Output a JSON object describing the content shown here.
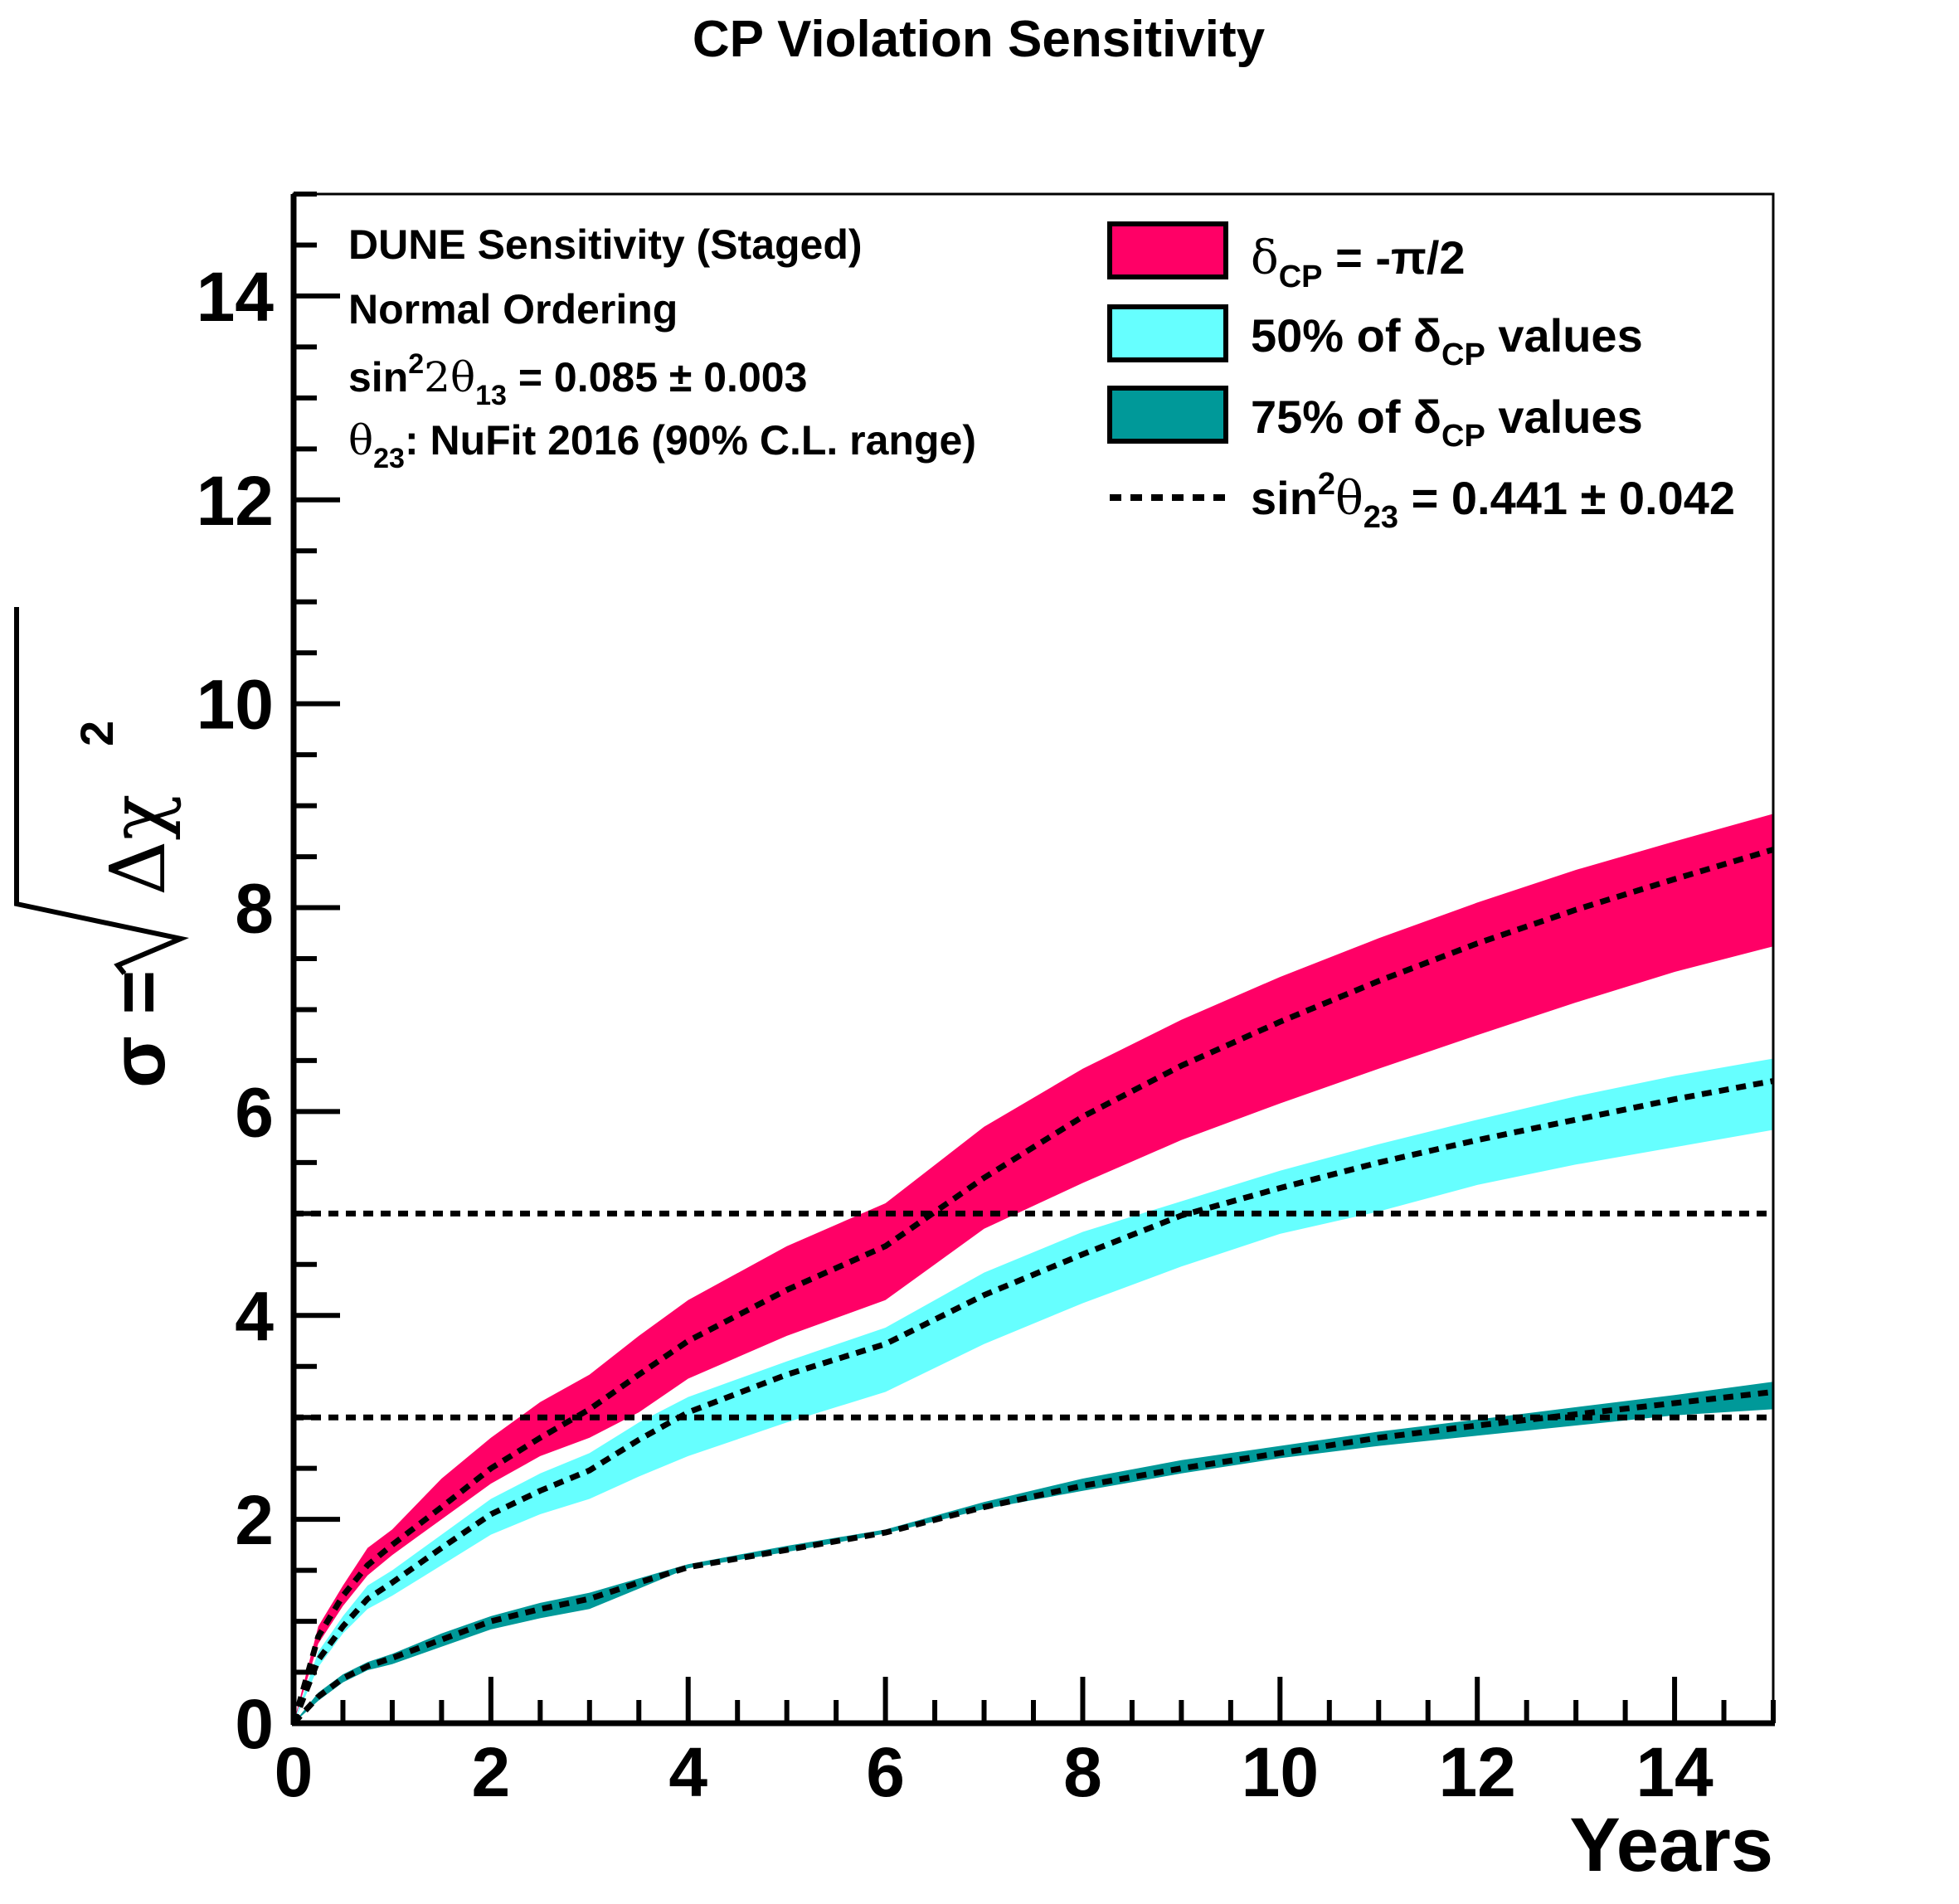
{
  "chart_data": {
    "type": "area",
    "title": "CP Violation Sensitivity",
    "xlabel": "Years",
    "ylabel": "σ = √Δχ²",
    "ylabel_prefix": "σ =",
    "ylabel_radicand": "Δχ",
    "ylabel_exponent": "2",
    "xlim": [
      0,
      15
    ],
    "ylim": [
      0,
      15
    ],
    "x_major_ticks": [
      0,
      2,
      4,
      6,
      8,
      10,
      12,
      14
    ],
    "y_major_ticks": [
      0,
      2,
      4,
      6,
      8,
      10,
      12,
      14
    ],
    "x_tick_labels": [
      "0",
      "2",
      "4",
      "6",
      "8",
      "10",
      "12",
      "14"
    ],
    "y_tick_labels": [
      "0",
      "2",
      "4",
      "6",
      "8",
      "10",
      "12",
      "14"
    ],
    "info_lines": {
      "line1": "DUNE Sensitivity (Staged)",
      "line2": "Normal Ordering",
      "line3_a": "sin",
      "line3_sup": "2",
      "line3_b": "2θ",
      "line3_sub": "13",
      "line3_c": " = 0.085 ± 0.003",
      "line4_a": "θ",
      "line4_sub": "23",
      "line4_b": ": NuFit 2016 (90% C.L. range)"
    },
    "legend": {
      "entry1_a": "δ",
      "entry1_sub": "CP",
      "entry1_b": " = -π/2",
      "entry2_a": "50% of  δ",
      "entry2_sub": "CP",
      "entry2_b": " values",
      "entry3_a": "75% of  δ",
      "entry3_sub": "CP",
      "entry3_b": " values",
      "entry4_a": "sin",
      "entry4_sup": "2",
      "entry4_b": "θ",
      "entry4_sub": "23",
      "entry4_c": " = 0.441 ± 0.042"
    },
    "x": [
      0,
      0.25,
      0.5,
      0.75,
      1,
      1.5,
      2,
      2.5,
      3,
      3.5,
      4,
      5,
      6,
      7,
      8,
      9,
      10,
      11,
      12,
      13,
      14,
      15
    ],
    "series": [
      {
        "name": "δCP = -π/2",
        "color": "#ff0066",
        "upper": [
          0,
          0.95,
          1.35,
          1.72,
          1.9,
          2.4,
          2.8,
          3.15,
          3.42,
          3.8,
          4.15,
          4.68,
          5.1,
          5.85,
          6.42,
          6.9,
          7.32,
          7.7,
          8.05,
          8.37,
          8.65,
          8.92
        ],
        "central": [
          0,
          0.85,
          1.25,
          1.55,
          1.75,
          2.12,
          2.5,
          2.8,
          3.08,
          3.42,
          3.75,
          4.25,
          4.68,
          5.35,
          5.95,
          6.45,
          6.88,
          7.28,
          7.65,
          7.98,
          8.28,
          8.57
        ],
        "lower": [
          0,
          0.78,
          1.15,
          1.45,
          1.65,
          2.0,
          2.35,
          2.62,
          2.8,
          3.05,
          3.38,
          3.8,
          4.15,
          4.85,
          5.3,
          5.72,
          6.08,
          6.42,
          6.75,
          7.07,
          7.37,
          7.62
        ]
      },
      {
        "name": "50% of δCP values",
        "color": "#66ffff",
        "upper": [
          0,
          0.7,
          1.05,
          1.35,
          1.5,
          1.85,
          2.2,
          2.45,
          2.65,
          2.95,
          3.2,
          3.55,
          3.88,
          4.42,
          4.82,
          5.12,
          5.42,
          5.68,
          5.92,
          6.15,
          6.35,
          6.52
        ],
        "central": [
          0,
          0.62,
          0.95,
          1.22,
          1.38,
          1.72,
          2.05,
          2.28,
          2.48,
          2.78,
          3.05,
          3.42,
          3.72,
          4.2,
          4.6,
          4.98,
          5.25,
          5.5,
          5.72,
          5.92,
          6.12,
          6.3
        ],
        "lower": [
          0,
          0.55,
          0.88,
          1.12,
          1.25,
          1.55,
          1.85,
          2.05,
          2.2,
          2.42,
          2.62,
          2.95,
          3.25,
          3.72,
          4.12,
          4.48,
          4.8,
          5.02,
          5.28,
          5.48,
          5.65,
          5.82
        ]
      },
      {
        "name": "75% of δCP values",
        "color": "#009999",
        "upper": [
          0,
          0.3,
          0.48,
          0.6,
          0.68,
          0.88,
          1.05,
          1.18,
          1.28,
          1.42,
          1.56,
          1.74,
          1.9,
          2.17,
          2.4,
          2.58,
          2.72,
          2.86,
          2.98,
          3.1,
          3.22,
          3.35
        ],
        "central": [
          0,
          0.26,
          0.44,
          0.56,
          0.64,
          0.82,
          1.0,
          1.12,
          1.22,
          1.38,
          1.53,
          1.7,
          1.87,
          2.12,
          2.33,
          2.5,
          2.65,
          2.8,
          2.92,
          3.03,
          3.14,
          3.25
        ],
        "lower": [
          0,
          0.22,
          0.4,
          0.52,
          0.58,
          0.75,
          0.92,
          1.03,
          1.12,
          1.32,
          1.52,
          1.68,
          1.86,
          2.1,
          2.28,
          2.45,
          2.6,
          2.72,
          2.82,
          2.92,
          3.02,
          3.08
        ]
      }
    ],
    "reference_lines": [
      3,
      5
    ]
  }
}
